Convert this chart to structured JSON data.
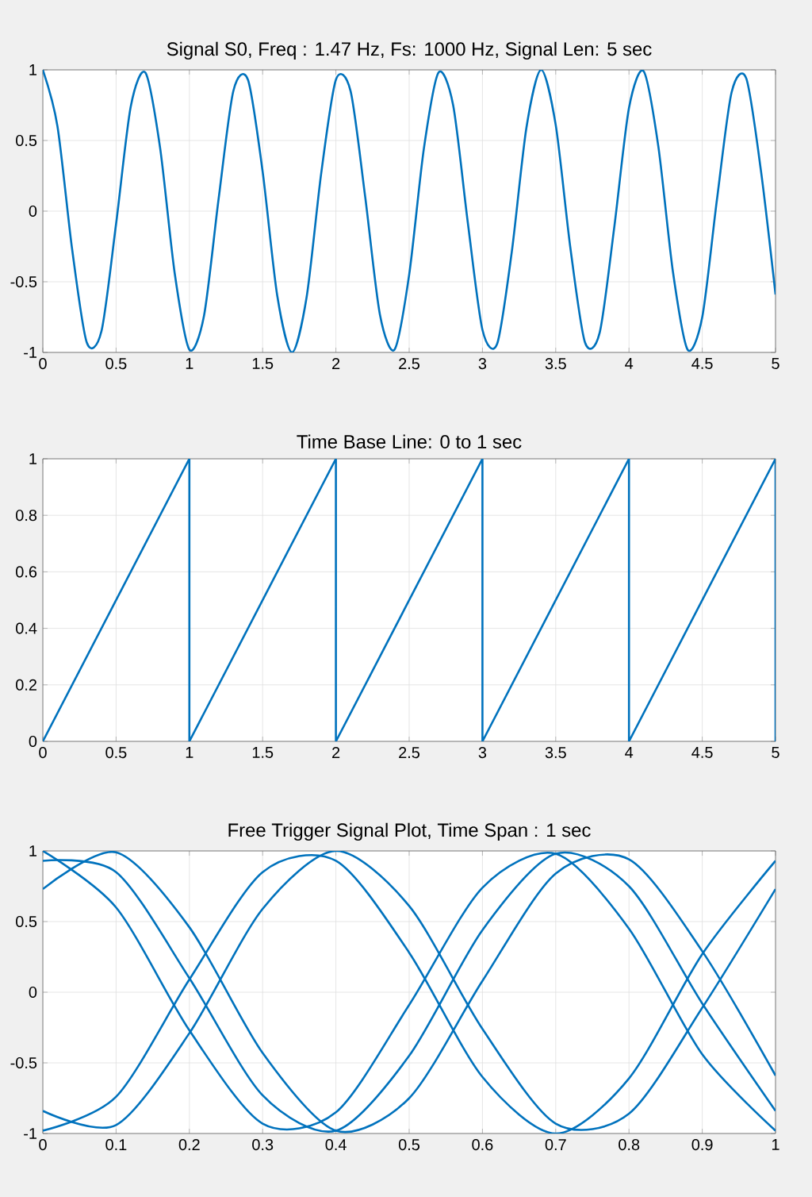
{
  "chart_data": [
    {
      "type": "line",
      "title": "Signal S0, Freq : 1.47 Hz, Fs: 1000 Hz, Signal Len: 5 sec",
      "x": [
        0,
        0.1,
        0.2,
        0.3,
        0.4,
        0.5,
        0.6,
        0.7,
        0.8,
        0.9,
        1,
        1.1,
        1.2,
        1.3,
        1.4,
        1.5,
        1.6,
        1.7,
        1.8,
        1.9,
        2,
        2.1,
        2.2,
        2.3,
        2.4,
        2.5,
        2.6,
        2.7,
        2.8,
        2.9,
        3,
        3.1,
        3.2,
        3.3,
        3.4,
        3.5,
        3.6,
        3.7,
        3.8,
        3.9,
        4,
        4.1,
        4.2,
        4.3,
        4.4,
        4.5,
        4.6,
        4.7,
        4.8,
        4.9,
        5
      ],
      "series": [
        {
          "color": "#0072bd",
          "values": [
            1,
            0.6,
            -0.27,
            -0.93,
            -0.85,
            -0.09,
            0.74,
            0.98,
            0.45,
            -0.44,
            -0.98,
            -0.74,
            0.09,
            0.85,
            0.93,
            0.28,
            -0.6,
            -1,
            -0.61,
            0.27,
            0.93,
            0.85,
            0.1,
            -0.73,
            -0.98,
            -0.45,
            0.44,
            0.98,
            0.75,
            -0.08,
            -0.84,
            -0.94,
            -0.29,
            0.59,
            1,
            0.61,
            -0.26,
            -0.93,
            -0.86,
            -0.11,
            0.73,
            0.99,
            0.46,
            -0.43,
            -0.98,
            -0.75,
            0.08,
            0.84,
            0.94,
            0.29,
            -0.59
          ]
        }
      ],
      "xlim": [
        0,
        5
      ],
      "ylim": [
        -1,
        1
      ],
      "xticks": [
        0,
        0.5,
        1,
        1.5,
        2,
        2.5,
        3,
        3.5,
        4,
        4.5,
        5
      ],
      "yticks": [
        -1,
        -0.5,
        0,
        0.5,
        1
      ],
      "grid": true
    },
    {
      "type": "line",
      "title": "Time Base Line: 0 to 1 sec",
      "x": [
        0,
        1,
        1,
        2,
        2,
        3,
        3,
        4,
        4,
        5,
        5
      ],
      "series": [
        {
          "color": "#0072bd",
          "values": [
            0,
            1,
            0,
            1,
            0,
            1,
            0,
            1,
            0,
            1,
            0
          ]
        }
      ],
      "xlim": [
        0,
        5
      ],
      "ylim": [
        0,
        1
      ],
      "xticks": [
        0,
        0.5,
        1,
        1.5,
        2,
        2.5,
        3,
        3.5,
        4,
        4.5,
        5
      ],
      "yticks": [
        0,
        0.2,
        0.4,
        0.6,
        0.8,
        1
      ],
      "grid": true
    },
    {
      "type": "line",
      "title": "Free Trigger Signal Plot, Time Span : 1 sec",
      "x": [
        0,
        0.1,
        0.2,
        0.3,
        0.4,
        0.5,
        0.6,
        0.7,
        0.8,
        0.9,
        1
      ],
      "series": [
        {
          "color": "#0072bd",
          "values": [
            1,
            0.6,
            -0.27,
            -0.93,
            -0.85,
            -0.09,
            0.74,
            0.98,
            0.45,
            -0.44,
            -0.98
          ]
        },
        {
          "color": "#0072bd",
          "values": [
            -0.98,
            -0.74,
            0.09,
            0.85,
            0.93,
            0.28,
            -0.6,
            -1,
            -0.61,
            0.27,
            0.93
          ]
        },
        {
          "color": "#0072bd",
          "values": [
            0.93,
            0.85,
            0.1,
            -0.73,
            -0.98,
            -0.45,
            0.44,
            0.98,
            0.75,
            -0.08,
            -0.84
          ]
        },
        {
          "color": "#0072bd",
          "values": [
            -0.84,
            -0.94,
            -0.29,
            0.59,
            1,
            0.61,
            -0.26,
            -0.93,
            -0.86,
            -0.11,
            0.73
          ]
        },
        {
          "color": "#0072bd",
          "values": [
            0.73,
            0.99,
            0.46,
            -0.43,
            -0.98,
            -0.75,
            0.08,
            0.84,
            0.94,
            0.29,
            -0.59
          ]
        }
      ],
      "xlim": [
        0,
        1
      ],
      "ylim": [
        -1,
        1
      ],
      "xticks": [
        0,
        0.1,
        0.2,
        0.3,
        0.4,
        0.5,
        0.6,
        0.7,
        0.8,
        0.9,
        1
      ],
      "yticks": [
        -1,
        -0.5,
        0,
        0.5,
        1
      ],
      "grid": true
    }
  ]
}
